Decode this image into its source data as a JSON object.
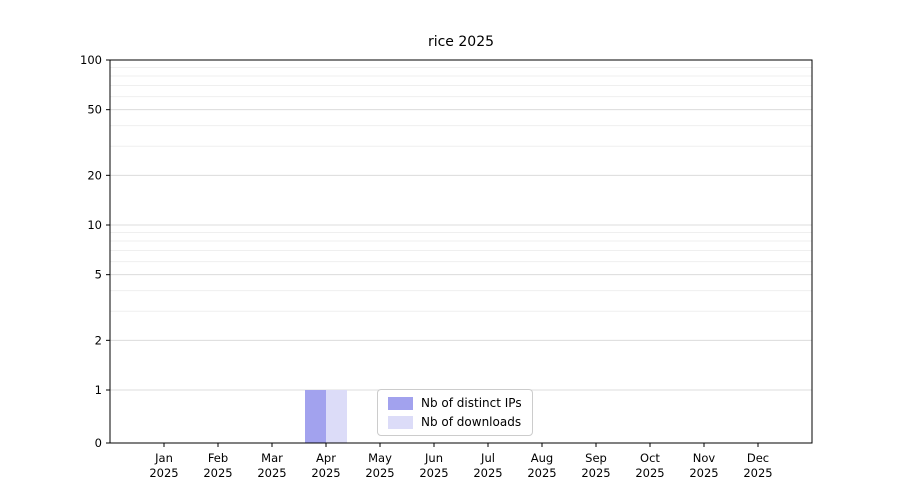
{
  "chart_data": {
    "type": "bar",
    "title": "rice 2025",
    "categories": [
      "Jan 2025",
      "Feb 2025",
      "Mar 2025",
      "Apr 2025",
      "May 2025",
      "Jun 2025",
      "Jul 2025",
      "Aug 2025",
      "Sep 2025",
      "Oct 2025",
      "Nov 2025",
      "Dec 2025"
    ],
    "series": [
      {
        "name": "Nb of distinct IPs",
        "color": "#a2a2ee",
        "values": [
          0,
          0,
          0,
          1,
          0,
          0,
          0,
          0,
          0,
          0,
          0,
          0
        ]
      },
      {
        "name": "Nb of downloads",
        "color": "#dcdcf8",
        "values": [
          0,
          0,
          0,
          1,
          0,
          0,
          0,
          0,
          0,
          0,
          0,
          0
        ]
      }
    ],
    "yscale": "symlog",
    "yticks": [
      0,
      1,
      2,
      5,
      10,
      20,
      50,
      100
    ],
    "ylim": [
      0,
      100
    ],
    "grid": true,
    "legend_position": "bottom-center",
    "colors": {
      "axis": "#000000",
      "major_grid": "#dcdcdc",
      "minor_grid": "#efefef",
      "background": "#ffffff"
    }
  }
}
